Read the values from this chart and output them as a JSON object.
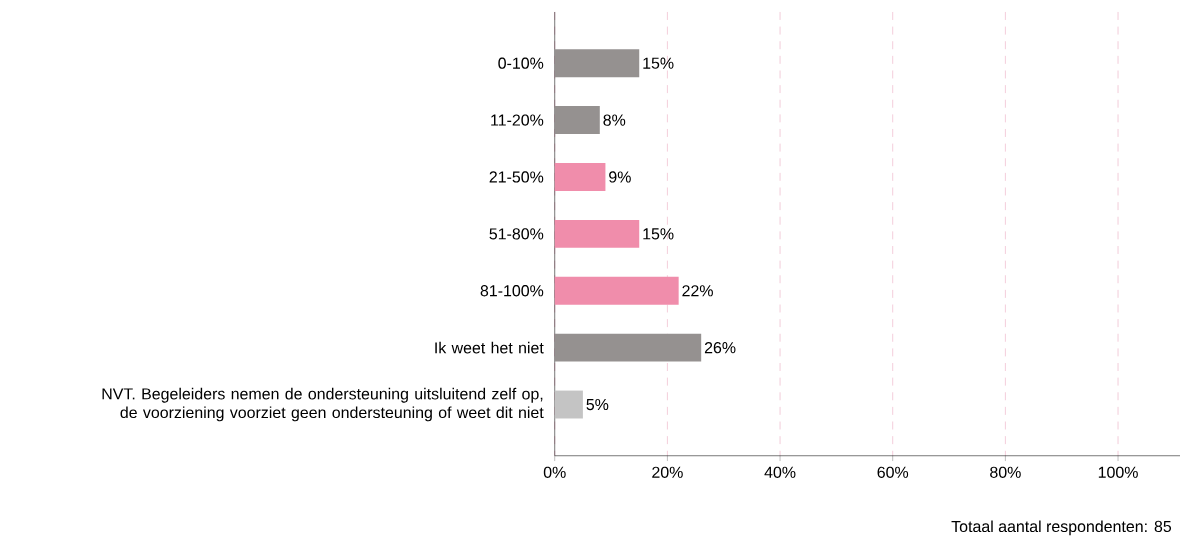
{
  "chart_data": {
    "type": "bar",
    "orientation": "horizontal",
    "categories": [
      "0-10%",
      "11-20%",
      "21-50%",
      "51-80%",
      "81-100%",
      "Ik weet het niet",
      "NVT. Begeleiders nemen de ondersteuning uitsluitend zelf op, de voorziening voorziet geen ondersteuning of weet dit niet"
    ],
    "values": [
      15,
      8,
      9,
      15,
      22,
      26,
      5
    ],
    "value_labels": [
      "15%",
      "8%",
      "9%",
      "15%",
      "22%",
      "26%",
      "5%"
    ],
    "colors": [
      "#959190",
      "#959190",
      "#f08dab",
      "#f08dab",
      "#f08dab",
      "#959190",
      "#c4c4c4"
    ],
    "xlim": [
      0,
      111
    ],
    "xticks": [
      {
        "value": 0,
        "label": "0%"
      },
      {
        "value": 20,
        "label": "20%"
      },
      {
        "value": 40,
        "label": "40%"
      },
      {
        "value": 60,
        "label": "60%"
      },
      {
        "value": 80,
        "label": "80%"
      },
      {
        "value": 100,
        "label": "100%"
      }
    ],
    "grid": "x",
    "annotations": [
      "Totaal aantal respondenten: 85"
    ]
  }
}
